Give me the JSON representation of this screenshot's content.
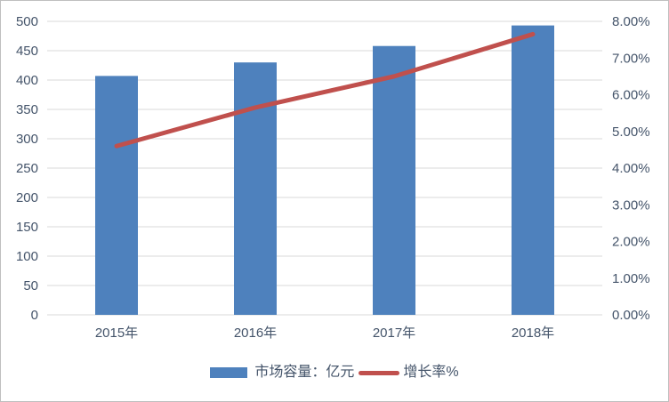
{
  "chart_data": {
    "type": "bar",
    "subtype": "bar-and-line-combo",
    "title": "",
    "categories": [
      "2015年",
      "2016年",
      "2017年",
      "2018年"
    ],
    "series": [
      {
        "name": "市场容量：亿元",
        "type": "bar",
        "axis": "left",
        "color": "#4e81bd",
        "values": [
          407,
          430,
          458,
          493
        ]
      },
      {
        "name": "增长率%",
        "type": "line",
        "axis": "right",
        "color": "#c0504d",
        "values": [
          4.6,
          5.65,
          6.5,
          7.65
        ]
      }
    ],
    "left_axis": {
      "min": 0,
      "max": 500,
      "step": 50,
      "ticks": [
        "0",
        "50",
        "100",
        "150",
        "200",
        "250",
        "300",
        "350",
        "400",
        "450",
        "500"
      ]
    },
    "right_axis": {
      "min": 0,
      "max": 8,
      "step": 1,
      "ticks": [
        "0.00%",
        "1.00%",
        "2.00%",
        "3.00%",
        "4.00%",
        "5.00%",
        "6.00%",
        "7.00%",
        "8.00%"
      ]
    },
    "grid": true,
    "legend_position": "bottom",
    "colors": {
      "bar": "#4e81bd",
      "line": "#c0504d",
      "grid": "#d9d9d9",
      "text": "#44546a",
      "background": "#ffffff",
      "border": "#bfbfbf"
    }
  }
}
